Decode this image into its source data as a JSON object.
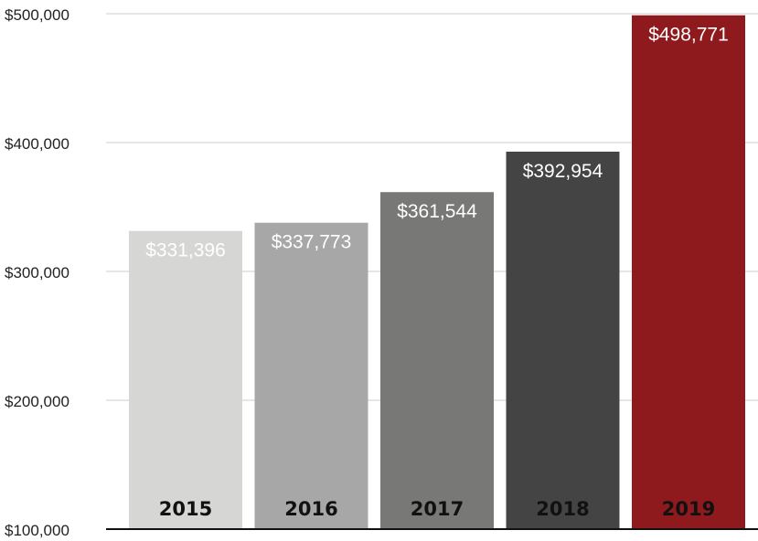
{
  "chart_data": {
    "type": "bar",
    "categories": [
      "2015",
      "2016",
      "2017",
      "2018",
      "2019"
    ],
    "values": [
      331396,
      337773,
      361544,
      392954,
      498771
    ],
    "value_labels": [
      "$331,396",
      "$337,773",
      "$361,544",
      "$392,954",
      "$498,771"
    ],
    "title": "",
    "xlabel": "",
    "ylabel": "",
    "ylim": [
      100000,
      500000
    ],
    "yticks": [
      100000,
      200000,
      300000,
      400000,
      500000
    ],
    "ytick_labels": [
      "$100,000",
      "$200,000",
      "$300,000",
      "$400,000",
      "$500,000"
    ],
    "grid": true,
    "legend": "none",
    "bar_colors": [
      "#d6d6d4",
      "#a6a7a6",
      "#787877",
      "#444444",
      "#8f1a1d"
    ],
    "grid_color": "#cccccc",
    "axis_color": "#111111"
  }
}
